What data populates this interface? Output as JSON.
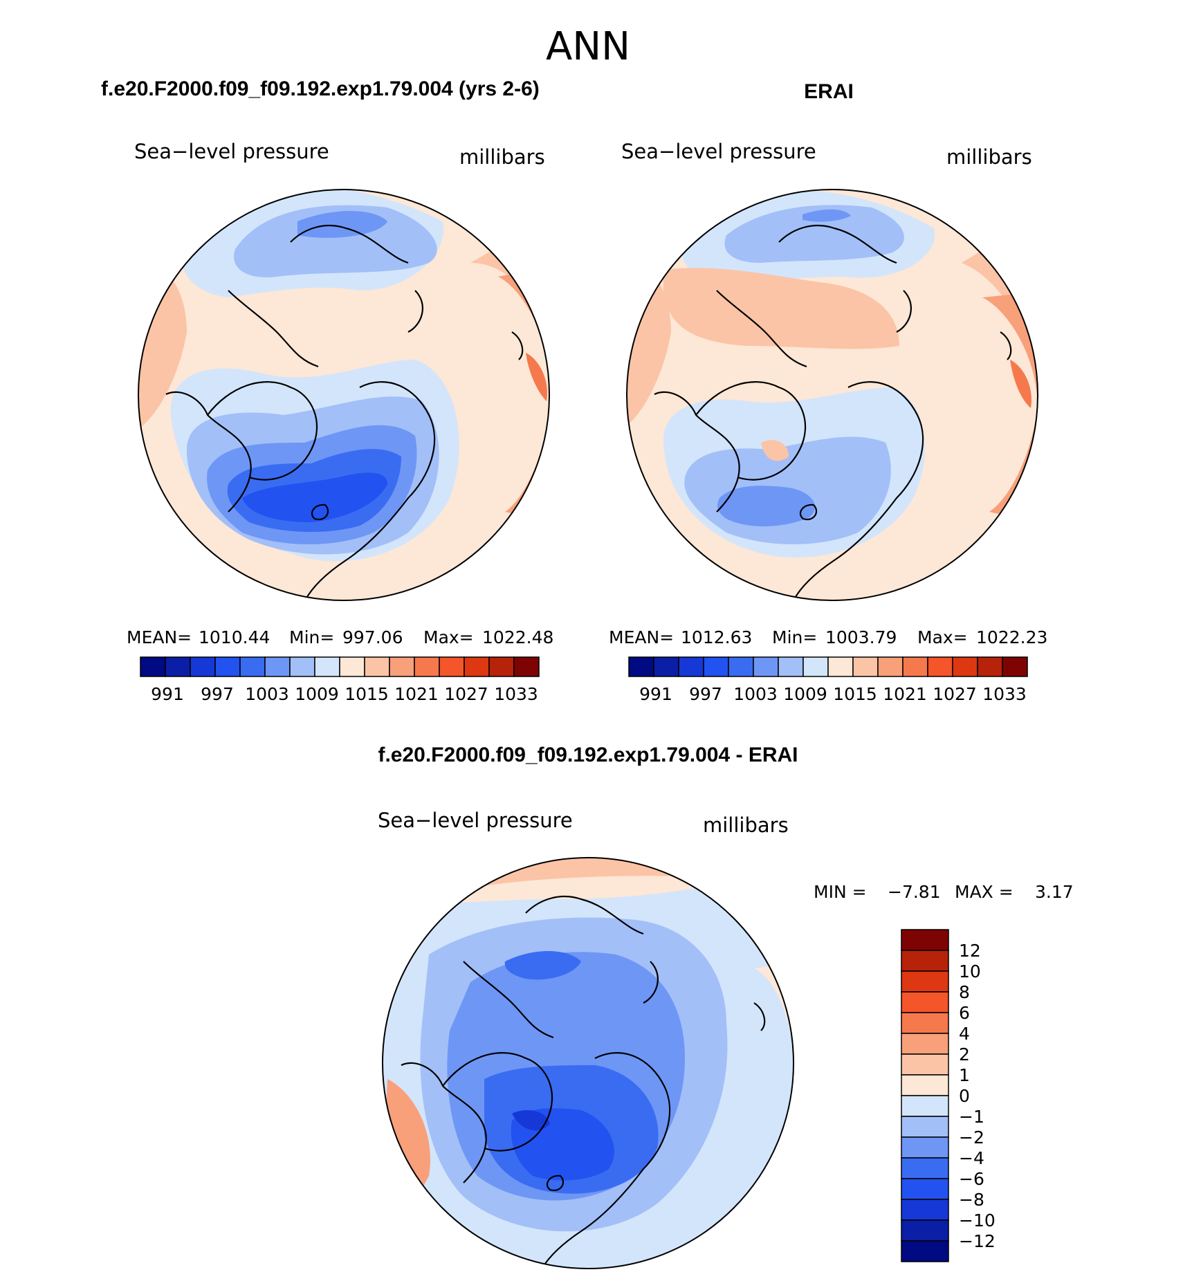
{
  "figure": {
    "title": "ANN",
    "bottom_panel_title": "f.e20.F2000.f09_f09.192.exp1.79.004 - ERAI"
  },
  "palette_colors": [
    "#000a82",
    "#0a1ea6",
    "#1638d6",
    "#2252f0",
    "#3a6cf2",
    "#6e96f5",
    "#a2bff8",
    "#d3e5fb",
    "#fde7d6",
    "#fbc4a6",
    "#f8a07a",
    "#f5794c",
    "#f4552a",
    "#dd3812",
    "#b6220a",
    "#7e0403"
  ],
  "panels": [
    {
      "id": "model",
      "title": "f.e20.F2000.f09_f09.192.exp1.79.004 (yrs 2-6)",
      "left_label": "Sea−level pressure",
      "right_label": "millibars",
      "stats": {
        "mean_label": "MEAN=",
        "mean": "1010.44",
        "min_label": "Min=",
        "min": "997.06",
        "max_label": "Max=",
        "max": "1022.48"
      },
      "colorbar_labels": [
        "991",
        "997",
        "1003",
        "1009",
        "1015",
        "1021",
        "1027",
        "1033"
      ]
    },
    {
      "id": "obs",
      "title": "ERAI",
      "left_label": "Sea−level pressure",
      "right_label": "millibars",
      "stats": {
        "mean_label": "MEAN=",
        "mean": "1012.63",
        "min_label": "Min=",
        "min": "1003.79",
        "max_label": "Max=",
        "max": "1022.23"
      },
      "colorbar_labels": [
        "991",
        "997",
        "1003",
        "1009",
        "1015",
        "1021",
        "1027",
        "1033"
      ]
    },
    {
      "id": "diff",
      "title": "f.e20.F2000.f09_f09.192.exp1.79.004 - ERAI",
      "left_label": "Sea−level pressure",
      "right_label": "millibars",
      "stats": {
        "min_label": "MIN =",
        "min": "−7.81",
        "max_label": "MAX =",
        "max": "3.17"
      },
      "colorbar_labels": [
        "12",
        "10",
        "8",
        "6",
        "4",
        "2",
        "1",
        "0",
        "−1",
        "−2",
        "−4",
        "−6",
        "−8",
        "−10",
        "−12"
      ]
    }
  ]
}
